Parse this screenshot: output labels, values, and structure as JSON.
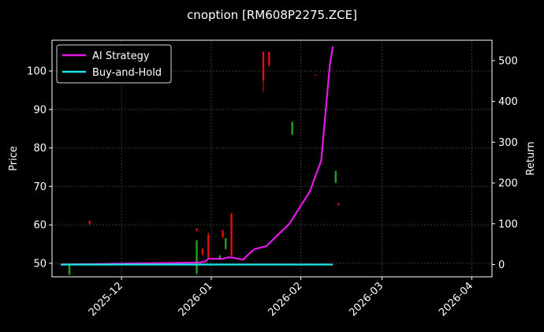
{
  "chart_data": {
    "type": "line",
    "title": "cnoption [RM608P2275.ZCE]",
    "xlabel": "",
    "ylabel": "Price",
    "ylabel_right": "Return",
    "x_axis": {
      "type": "date",
      "range": [
        "2025-11-07",
        "2026-04-08"
      ]
    },
    "ylim": [
      46.5,
      108
    ],
    "ylim_right": [
      -30,
      550
    ],
    "x_ticks": [
      "2025-12",
      "2026-01",
      "2026-02",
      "2026-03",
      "2026-04"
    ],
    "y_ticks": [
      50,
      60,
      70,
      80,
      90,
      100
    ],
    "y_ticks_right": [
      0,
      100,
      200,
      300,
      400,
      500
    ],
    "grid": true,
    "legend": {
      "placement": "top-left",
      "entries": [
        "AI Strategy",
        "Buy-and-Hold"
      ]
    },
    "colors": {
      "background": "#000000",
      "ai_strategy": "#e619e6",
      "buy_and_hold": "#19e6e6",
      "candle_up": "#1fa31f",
      "candle_down": "#e01010",
      "grid": "#5a5a5a"
    },
    "series": [
      {
        "name": "AI Strategy",
        "axis": "right",
        "points": [
          [
            "2025-11-10",
            0
          ],
          [
            "2025-11-20",
            1
          ],
          [
            "2025-11-30",
            2
          ],
          [
            "2025-12-10",
            3
          ],
          [
            "2025-12-20",
            4
          ],
          [
            "2025-12-28",
            5
          ],
          [
            "2025-12-30",
            8
          ],
          [
            "2025-12-31",
            14
          ],
          [
            "2026-01-05",
            14
          ],
          [
            "2026-01-07",
            18
          ],
          [
            "2026-01-09",
            16
          ],
          [
            "2026-01-12",
            12
          ],
          [
            "2026-01-14",
            26
          ],
          [
            "2026-01-16",
            38
          ],
          [
            "2026-01-20",
            45
          ],
          [
            "2026-01-28",
            100
          ],
          [
            "2026-02-04",
            178
          ],
          [
            "2026-02-08",
            255
          ],
          [
            "2026-02-11",
            490
          ],
          [
            "2026-02-12",
            535
          ]
        ]
      },
      {
        "name": "Buy-and-Hold",
        "axis": "right",
        "points": [
          [
            "2025-11-10",
            0
          ],
          [
            "2025-12-10",
            0
          ],
          [
            "2026-01-10",
            0
          ],
          [
            "2026-02-12",
            0
          ]
        ]
      }
    ],
    "candles": [
      {
        "date": "2025-11-13",
        "open": 47.0,
        "close": 49.8,
        "high": 49.8,
        "low": 47.0
      },
      {
        "date": "2025-11-20",
        "open": 61.0,
        "close": 60.3,
        "high": 61.0,
        "low": 60.0
      },
      {
        "date": "2025-12-27",
        "open": 59.0,
        "close": 58.5,
        "high": 59.2,
        "low": 58.3
      },
      {
        "date": "2025-12-27",
        "open": 47.5,
        "close": 56.0,
        "high": 56.0,
        "low": 47.0
      },
      {
        "date": "2025-12-29",
        "open": 53.8,
        "close": 52.3,
        "high": 54.0,
        "low": 52.0
      },
      {
        "date": "2025-12-31",
        "open": 57.5,
        "close": 51.5,
        "high": 58.0,
        "low": 51.0
      },
      {
        "date": "2026-01-04",
        "open": 51.0,
        "close": 52.0,
        "high": 52.2,
        "low": 50.8
      },
      {
        "date": "2026-01-05",
        "open": 58.5,
        "close": 56.8,
        "high": 58.8,
        "low": 56.5
      },
      {
        "date": "2026-01-06",
        "open": 53.8,
        "close": 56.5,
        "high": 56.5,
        "low": 53.5
      },
      {
        "date": "2026-01-08",
        "open": 63.0,
        "close": 52.0,
        "high": 63.0,
        "low": 51.5
      },
      {
        "date": "2026-01-19",
        "open": 105.0,
        "close": 97.5,
        "high": 105.0,
        "low": 94.5
      },
      {
        "date": "2026-01-21",
        "open": 105.0,
        "close": 101.5,
        "high": 105.0,
        "low": 101.0
      },
      {
        "date": "2026-01-29",
        "open": 83.5,
        "close": 86.8,
        "high": 86.8,
        "low": 83.3
      },
      {
        "date": "2026-02-06",
        "open": 99.0,
        "close": 98.8,
        "high": 99.0,
        "low": 98.7
      },
      {
        "date": "2026-02-13",
        "open": 71.0,
        "close": 74.0,
        "high": 74.0,
        "low": 70.8
      },
      {
        "date": "2026-02-14",
        "open": 65.6,
        "close": 65.2,
        "high": 65.6,
        "low": 65.0
      }
    ]
  }
}
